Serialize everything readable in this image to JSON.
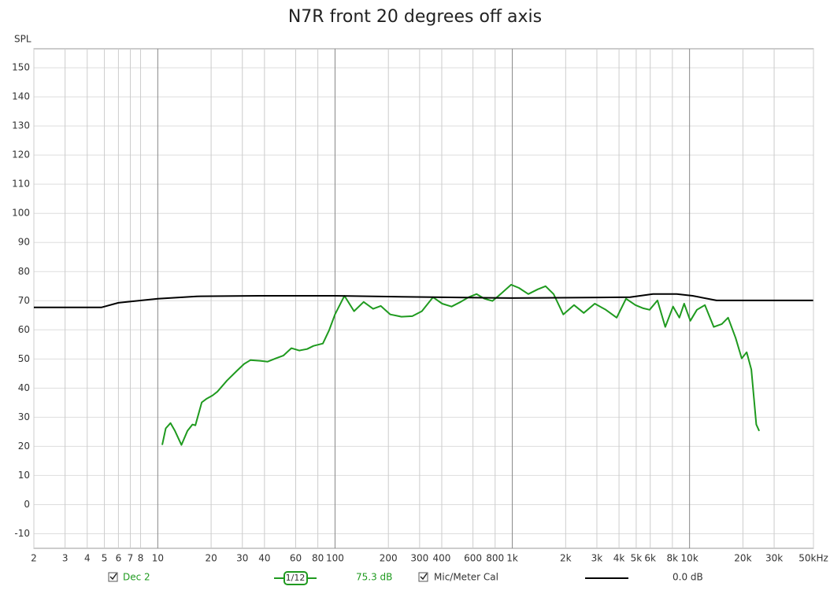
{
  "chart_data": {
    "type": "line",
    "title": "N7R front 20 degrees off axis",
    "y_label": "SPL",
    "xscale": "log",
    "grid": true,
    "xlim": [
      2,
      50000
    ],
    "ylim": [
      -15,
      156.5
    ],
    "xticks": [
      2,
      3,
      4,
      5,
      6,
      7,
      8,
      10,
      20,
      30,
      40,
      60,
      80,
      100,
      200,
      300,
      400,
      600,
      800,
      {
        "value": 1000,
        "label": "1k"
      },
      {
        "value": 2000,
        "label": "2k"
      },
      {
        "value": 3000,
        "label": "3k"
      },
      {
        "value": 4000,
        "label": "4k"
      },
      {
        "value": 5000,
        "label": "5k"
      },
      {
        "value": 6000,
        "label": "6k"
      },
      {
        "value": 8000,
        "label": "8k"
      },
      {
        "value": 10000,
        "label": "10k"
      },
      {
        "value": 20000,
        "label": "20k"
      },
      {
        "value": 30000,
        "label": "30k"
      },
      {
        "value": 50000,
        "label": "50kHz"
      }
    ],
    "yticks": [
      -10,
      0,
      10,
      20,
      30,
      40,
      50,
      60,
      70,
      80,
      90,
      100,
      110,
      120,
      130,
      140,
      150
    ],
    "smoothing": "1/12",
    "series": [
      {
        "name": "Dec 2",
        "color": "#1f9a1f",
        "level": "75.3 dB",
        "x": [
          10.6,
          11.1,
          11.8,
          12.5,
          13.6,
          14.7,
          15.7,
          16.3,
          17.7,
          18.9,
          20.4,
          21.7,
          24.6,
          27.8,
          30.7,
          33.3,
          37.7,
          41.7,
          46.3,
          51.2,
          56.7,
          62.8,
          69.6,
          75.6,
          85.4,
          92.7,
          100,
          113,
          128,
          145,
          164,
          181,
          205,
          237,
          273,
          309,
          357,
          402,
          454,
          511,
          567,
          628,
          697,
          772,
          837,
          985,
          1090,
          1232,
          1391,
          1540,
          1710,
          1940,
          2230,
          2530,
          2920,
          3370,
          3880,
          4380,
          4950,
          5480,
          5950,
          6590,
          7290,
          8070,
          8760,
          9320,
          10100,
          11000,
          12200,
          13700,
          15200,
          16500,
          18200,
          19700,
          21000,
          22300,
          23800,
          24700
        ],
        "values": [
          20.5,
          26.2,
          28.0,
          25.3,
          20.5,
          25.3,
          27.5,
          27.2,
          35.1,
          36.4,
          37.5,
          38.8,
          42.6,
          45.8,
          48.3,
          49.6,
          49.4,
          49.1,
          50.2,
          51.2,
          53.7,
          52.9,
          53.4,
          54.5,
          55.3,
          59.9,
          65.3,
          71.7,
          66.4,
          69.6,
          67.2,
          68.2,
          65.3,
          64.5,
          64.7,
          66.4,
          71.2,
          69.0,
          68.0,
          69.6,
          71.2,
          72.3,
          70.7,
          69.9,
          71.7,
          75.5,
          74.4,
          72.3,
          73.9,
          75.0,
          72.3,
          65.3,
          68.5,
          65.8,
          69.0,
          66.9,
          64.2,
          70.7,
          68.5,
          67.4,
          66.9,
          70.1,
          61.0,
          68.0,
          64.2,
          69.0,
          63.1,
          66.9,
          68.5,
          61.0,
          62.0,
          64.2,
          57.2,
          50.2,
          52.3,
          46.4,
          27.5,
          25.3
        ]
      },
      {
        "name": "Mic/Meter Cal",
        "color": "#000000",
        "level": "0.0 dB",
        "x": [
          2,
          4.8,
          6.0,
          10,
          16.6,
          37.7,
          100,
          357,
          1000,
          4620,
          6220,
          8470,
          10400,
          14200,
          19000,
          49800
        ],
        "values": [
          67.7,
          67.7,
          69.3,
          70.7,
          71.5,
          71.7,
          71.7,
          71.2,
          70.9,
          71.2,
          72.3,
          72.3,
          71.7,
          70.1,
          70.1,
          70.1
        ]
      }
    ]
  }
}
